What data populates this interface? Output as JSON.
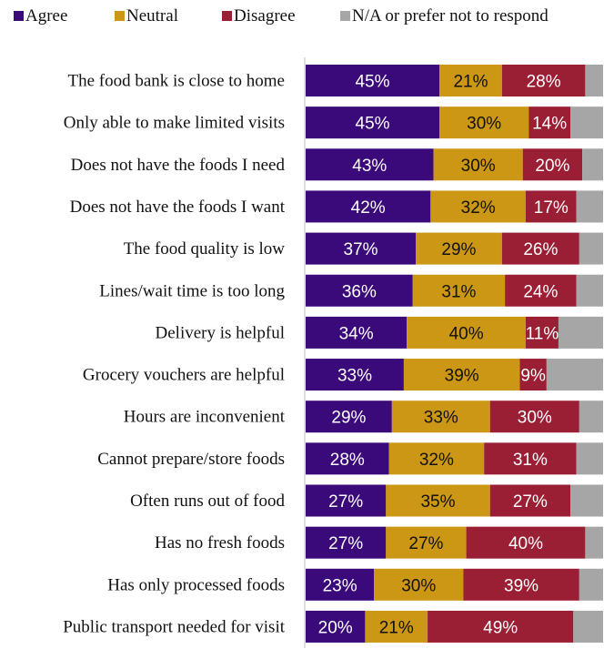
{
  "chart_data": {
    "type": "bar",
    "orientation": "horizontal",
    "stacked": true,
    "grid": false,
    "legend_position": "top",
    "categories": [
      "The food bank is close to home",
      "Only able to make limited visits",
      "Does not have the foods I need",
      "Does not have the foods I want",
      "The food quality  is low",
      "Lines/wait time is too long",
      "Delivery is helpful",
      "Grocery  vouchers are helpful",
      "Hours are inconvenient",
      "Cannot prepare/store foods",
      "Often runs out of food",
      "Has no fresh foods",
      "Has only processed foods",
      "Public transport needed for visit"
    ],
    "series": [
      {
        "name": "Agree",
        "color": "#3a0a7a",
        "values": [
          45,
          45,
          43,
          42,
          37,
          36,
          34,
          33,
          29,
          28,
          27,
          27,
          23,
          20
        ]
      },
      {
        "name": "Neutral",
        "color": "#cc9714",
        "values": [
          21,
          30,
          30,
          32,
          29,
          31,
          40,
          39,
          33,
          32,
          35,
          27,
          30,
          21
        ]
      },
      {
        "name": "Disagree",
        "color": "#9b1f34",
        "values": [
          28,
          14,
          20,
          17,
          26,
          24,
          11,
          9,
          30,
          31,
          27,
          40,
          39,
          49
        ]
      },
      {
        "name": "N/A or prefer not to respond",
        "color": "#a6a6a6",
        "values": [
          6,
          11,
          7,
          9,
          8,
          9,
          15,
          19,
          8,
          9,
          11,
          6,
          8,
          10
        ]
      }
    ],
    "label_suffix": "%",
    "labeled_series": [
      "Agree",
      "Neutral",
      "Disagree"
    ],
    "xlim": [
      0,
      100
    ],
    "label_colors": {
      "Agree": "#ffffff",
      "Neutral": "#111111",
      "Disagree": "#ffffff"
    },
    "axis_color": "#bfbfbf"
  }
}
